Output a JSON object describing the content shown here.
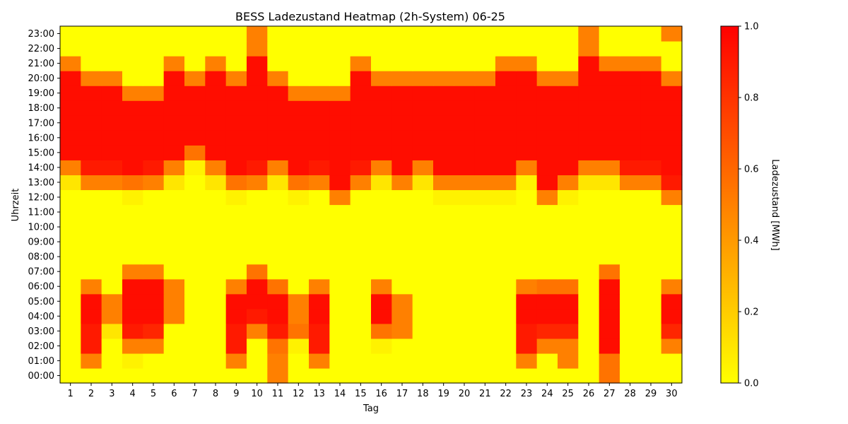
{
  "chart_data": {
    "type": "heatmap",
    "title": "BESS Ladezustand Heatmap (2h-System) 06-25",
    "xlabel": "Tag",
    "ylabel": "Uhrzeit",
    "x": [
      1,
      2,
      3,
      4,
      5,
      6,
      7,
      8,
      9,
      10,
      11,
      12,
      13,
      14,
      15,
      16,
      17,
      18,
      19,
      20,
      21,
      22,
      23,
      24,
      25,
      26,
      27,
      28,
      29,
      30
    ],
    "y": [
      "00:00",
      "01:00",
      "02:00",
      "03:00",
      "04:00",
      "05:00",
      "06:00",
      "07:00",
      "08:00",
      "09:00",
      "10:00",
      "11:00",
      "12:00",
      "13:00",
      "14:00",
      "15:00",
      "16:00",
      "17:00",
      "18:00",
      "19:00",
      "20:00",
      "21:00",
      "22:00",
      "23:00"
    ],
    "values": [
      [
        0,
        0,
        0,
        0,
        0,
        0,
        0,
        0,
        0,
        0,
        0.5,
        0,
        0,
        0,
        0,
        0,
        0,
        0,
        0,
        0,
        0,
        0,
        0,
        0,
        0,
        0,
        0.55,
        0,
        0,
        0
      ],
      [
        0,
        0.5,
        0,
        0.05,
        0,
        0,
        0,
        0,
        0.5,
        0,
        0.5,
        0,
        0.5,
        0,
        0,
        0,
        0,
        0,
        0,
        0,
        0,
        0,
        0.5,
        0,
        0.5,
        0,
        0.55,
        0,
        0,
        0
      ],
      [
        0,
        0.9,
        0,
        0.5,
        0.5,
        0,
        0,
        0,
        0.9,
        0,
        0.55,
        0.05,
        0.9,
        0,
        0,
        0.05,
        0,
        0,
        0,
        0,
        0,
        0,
        0.9,
        0.5,
        0.5,
        0,
        0.95,
        0,
        0,
        0.5
      ],
      [
        0,
        0.9,
        0.1,
        0.9,
        0.85,
        0,
        0,
        0,
        0.9,
        0.5,
        0.9,
        0.55,
        0.9,
        0,
        0,
        0.55,
        0.5,
        0,
        0,
        0,
        0,
        0,
        0.9,
        0.85,
        0.85,
        0,
        0.95,
        0,
        0,
        0.85
      ],
      [
        0,
        0.95,
        0.5,
        0.95,
        0.95,
        0.5,
        0,
        0,
        0.95,
        0.9,
        0.95,
        0.5,
        0.95,
        0,
        0,
        0.95,
        0.5,
        0,
        0,
        0,
        0,
        0,
        0.95,
        0.95,
        0.95,
        0,
        0.95,
        0,
        0,
        0.95
      ],
      [
        0,
        0.95,
        0.5,
        0.95,
        0.95,
        0.5,
        0,
        0,
        0.95,
        0.95,
        0.95,
        0.5,
        0.95,
        0,
        0,
        0.95,
        0.5,
        0,
        0,
        0,
        0,
        0,
        0.95,
        0.95,
        0.95,
        0,
        0.95,
        0,
        0,
        0.95
      ],
      [
        0,
        0.5,
        0,
        0.95,
        0.95,
        0.5,
        0,
        0,
        0.5,
        0.95,
        0.55,
        0,
        0.5,
        0,
        0,
        0.5,
        0,
        0,
        0,
        0,
        0,
        0,
        0.5,
        0.55,
        0.55,
        0,
        0.95,
        0,
        0,
        0.5
      ],
      [
        0,
        0,
        0,
        0.5,
        0.5,
        0,
        0,
        0,
        0,
        0.55,
        0,
        0,
        0,
        0,
        0,
        0,
        0,
        0,
        0,
        0,
        0,
        0,
        0,
        0,
        0,
        0,
        0.55,
        0,
        0,
        0
      ],
      [
        0,
        0,
        0,
        0,
        0,
        0,
        0,
        0,
        0,
        0,
        0,
        0,
        0,
        0,
        0,
        0,
        0,
        0,
        0,
        0,
        0,
        0,
        0,
        0,
        0,
        0,
        0,
        0,
        0,
        0
      ],
      [
        0,
        0,
        0,
        0,
        0,
        0,
        0,
        0,
        0,
        0,
        0,
        0,
        0,
        0,
        0,
        0,
        0,
        0,
        0,
        0,
        0,
        0,
        0,
        0,
        0,
        0,
        0,
        0,
        0,
        0
      ],
      [
        0,
        0,
        0,
        0,
        0,
        0,
        0,
        0,
        0,
        0,
        0,
        0,
        0,
        0,
        0,
        0,
        0,
        0,
        0,
        0,
        0,
        0,
        0,
        0,
        0,
        0,
        0,
        0,
        0,
        0
      ],
      [
        0,
        0,
        0,
        0,
        0,
        0,
        0,
        0,
        0,
        0,
        0,
        0,
        0,
        0,
        0,
        0,
        0,
        0,
        0,
        0,
        0,
        0,
        0,
        0,
        0,
        0,
        0,
        0,
        0,
        0
      ],
      [
        0,
        0,
        0,
        0.05,
        0,
        0,
        0,
        0,
        0.05,
        0,
        0,
        0.05,
        0,
        0.5,
        0,
        0,
        0,
        0,
        0.05,
        0.05,
        0.05,
        0.05,
        0,
        0.5,
        0.05,
        0,
        0,
        0,
        0,
        0.5
      ],
      [
        0.1,
        0.5,
        0.5,
        0.55,
        0.5,
        0.1,
        0,
        0.1,
        0.55,
        0.5,
        0.1,
        0.55,
        0.5,
        0.95,
        0.5,
        0.1,
        0.5,
        0.1,
        0.5,
        0.5,
        0.5,
        0.5,
        0.05,
        0.95,
        0.5,
        0.1,
        0.1,
        0.5,
        0.5,
        0.9
      ],
      [
        0.5,
        0.9,
        0.9,
        0.95,
        0.9,
        0.5,
        0.05,
        0.5,
        0.95,
        0.9,
        0.5,
        0.95,
        0.9,
        0.95,
        0.9,
        0.5,
        0.95,
        0.5,
        0.95,
        0.95,
        0.95,
        0.95,
        0.5,
        0.95,
        0.95,
        0.5,
        0.5,
        0.9,
        0.9,
        0.95
      ],
      [
        0.95,
        0.95,
        0.95,
        0.95,
        0.95,
        0.95,
        0.55,
        0.95,
        0.95,
        0.95,
        0.95,
        0.95,
        0.95,
        0.95,
        0.95,
        0.95,
        0.95,
        0.95,
        0.95,
        0.95,
        0.95,
        0.95,
        0.95,
        0.95,
        0.95,
        0.95,
        0.95,
        0.95,
        0.95,
        0.95
      ],
      [
        0.95,
        0.95,
        0.95,
        0.95,
        0.95,
        0.95,
        0.95,
        0.95,
        0.95,
        0.95,
        0.95,
        0.95,
        0.95,
        0.95,
        0.95,
        0.95,
        0.95,
        0.95,
        0.95,
        0.95,
        0.95,
        0.95,
        0.95,
        0.95,
        0.95,
        0.95,
        0.95,
        0.95,
        0.95,
        0.95
      ],
      [
        0.95,
        0.95,
        0.95,
        0.95,
        0.95,
        0.95,
        0.95,
        0.95,
        0.95,
        0.95,
        0.95,
        0.95,
        0.95,
        0.95,
        0.95,
        0.95,
        0.95,
        0.95,
        0.95,
        0.95,
        0.95,
        0.95,
        0.95,
        0.95,
        0.95,
        0.95,
        0.95,
        0.95,
        0.95,
        0.95
      ],
      [
        0.95,
        0.95,
        0.95,
        0.95,
        0.95,
        0.95,
        0.95,
        0.95,
        0.95,
        0.95,
        0.95,
        0.95,
        0.95,
        0.95,
        0.95,
        0.95,
        0.95,
        0.95,
        0.95,
        0.95,
        0.95,
        0.95,
        0.95,
        0.95,
        0.95,
        0.95,
        0.95,
        0.95,
        0.95,
        0.95
      ],
      [
        0.95,
        0.95,
        0.95,
        0.5,
        0.5,
        0.95,
        0.95,
        0.95,
        0.95,
        0.95,
        0.95,
        0.5,
        0.5,
        0.5,
        0.95,
        0.95,
        0.95,
        0.95,
        0.95,
        0.95,
        0.95,
        0.95,
        0.95,
        0.95,
        0.95,
        0.95,
        0.95,
        0.95,
        0.95,
        0.95
      ],
      [
        0.95,
        0.5,
        0.5,
        0,
        0,
        0.95,
        0.5,
        0.95,
        0.5,
        0.95,
        0.5,
        0,
        0,
        0,
        0.95,
        0.5,
        0.5,
        0.5,
        0.5,
        0.5,
        0.5,
        0.95,
        0.95,
        0.5,
        0.5,
        0.95,
        0.95,
        0.95,
        0.95,
        0.5
      ],
      [
        0.5,
        0,
        0,
        0,
        0,
        0.5,
        0,
        0.5,
        0,
        0.95,
        0,
        0,
        0,
        0,
        0.5,
        0,
        0,
        0,
        0,
        0,
        0,
        0.5,
        0.5,
        0,
        0,
        0.95,
        0.5,
        0.5,
        0.5,
        0
      ],
      [
        0,
        0,
        0,
        0,
        0,
        0,
        0,
        0,
        0,
        0.5,
        0,
        0,
        0,
        0,
        0,
        0,
        0,
        0,
        0,
        0,
        0,
        0,
        0,
        0,
        0,
        0.5,
        0,
        0,
        0,
        0
      ],
      [
        0,
        0,
        0,
        0,
        0,
        0,
        0,
        0,
        0,
        0.5,
        0,
        0,
        0,
        0,
        0,
        0,
        0,
        0,
        0,
        0,
        0,
        0,
        0,
        0,
        0,
        0.5,
        0,
        0,
        0,
        0.5
      ]
    ],
    "vmin": 0,
    "vmax": 1,
    "colormap": [
      "#ffff00",
      "#ff8000",
      "#ff0000"
    ],
    "colorbar": {
      "label": "Ladezustand [MWh]",
      "ticks": [
        "0.0",
        "0.2",
        "0.4",
        "0.6",
        "0.8",
        "1.0"
      ]
    },
    "grid": false
  }
}
